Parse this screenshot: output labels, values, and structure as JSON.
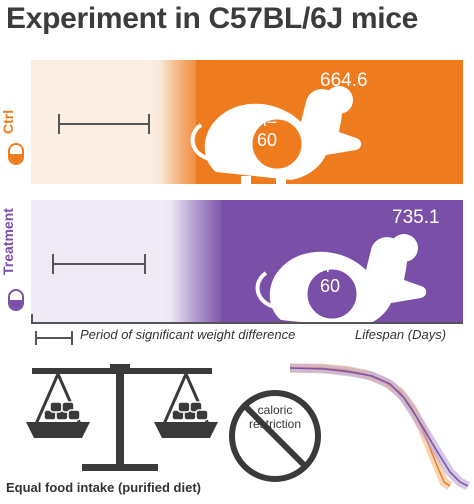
{
  "title": "Experiment in C57BL/6J mice",
  "groups": {
    "ctrl": {
      "label": "Ctrl",
      "lifespan": "664.6",
      "n_label": "n=",
      "n_value": "60",
      "color": "#ee7b1e"
    },
    "treatment": {
      "label": "Treatment",
      "lifespan": "735.1",
      "n_label": "n=",
      "n_value": "60",
      "color": "#7a4fa8"
    }
  },
  "legend": {
    "period": "Period of significant weight difference",
    "axis": "Lifespan (Days)"
  },
  "bottom": {
    "caption": "Equal food intake (purified diet)",
    "no_sign_text": [
      "caloric",
      "restriction"
    ]
  }
}
